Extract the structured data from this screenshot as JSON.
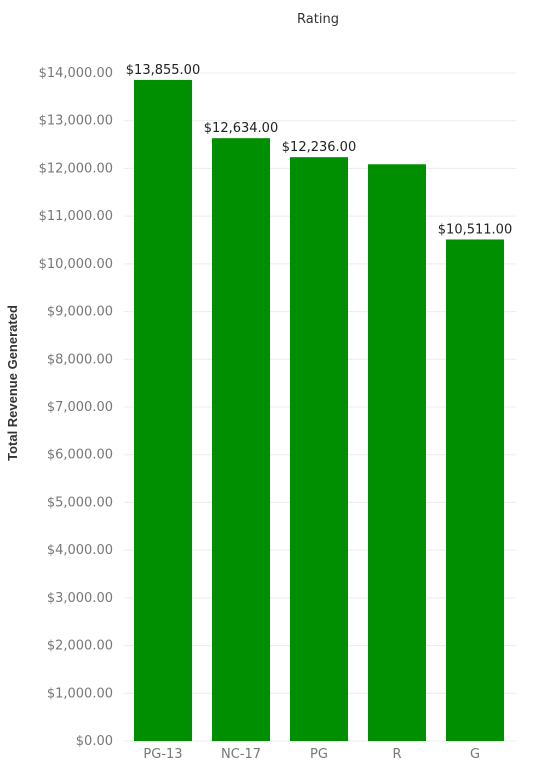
{
  "chart_data": {
    "type": "bar",
    "title": "Rating",
    "xlabel": "",
    "ylabel": "Total Revenue Generated",
    "categories": [
      "PG-13",
      "NC-17",
      "PG",
      "R",
      "G"
    ],
    "values": [
      13855,
      12634,
      12236,
      12087,
      10511
    ],
    "data_labels": [
      "$13,855.00",
      "$12,634.00",
      "$12,236.00",
      "",
      "$10,511.00"
    ],
    "ylim": [
      0,
      14000
    ],
    "yticks": [
      0,
      1000,
      2000,
      3000,
      4000,
      5000,
      6000,
      7000,
      8000,
      9000,
      10000,
      11000,
      12000,
      13000,
      14000
    ],
    "ytick_labels": [
      "$0.00",
      "$1,000.00",
      "$2,000.00",
      "$3,000.00",
      "$4,000.00",
      "$5,000.00",
      "$6,000.00",
      "$7,000.00",
      "$8,000.00",
      "$9,000.00",
      "$10,000.00",
      "$11,000.00",
      "$12,000.00",
      "$13,000.00",
      "$14,000.00"
    ],
    "grid": true,
    "legend": "none",
    "colors": {
      "bar": "#008f00",
      "grid": "#ececec",
      "tick_text": "#777777",
      "label_text": "#222222"
    }
  }
}
